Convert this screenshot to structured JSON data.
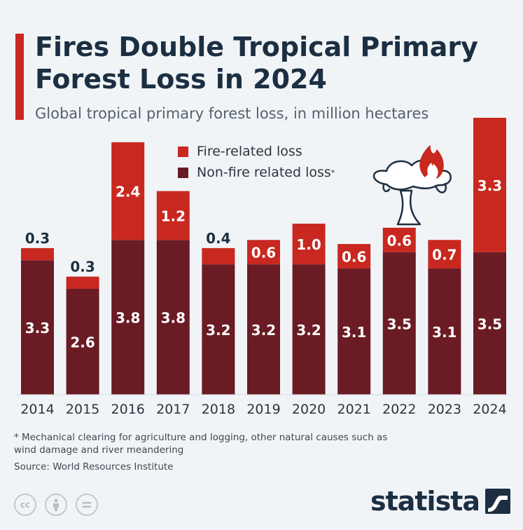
{
  "header": {
    "title": "Fires Double Tropical Primary Forest Loss in 2024",
    "subtitle": "Global tropical primary forest loss, in million hectares"
  },
  "footer": {
    "footnote": "* Mechanical clearing for agriculture and logging, other natural causes such as wind damage and river meandering",
    "source": "Source: World Resources Institute",
    "brand": "statista",
    "license_icons": [
      "cc-icon",
      "attribution-icon",
      "no-derivatives-icon"
    ]
  },
  "colors": {
    "fire": "#c8281f",
    "nonfire": "#6a1b24",
    "accent": "#c8281f",
    "text_dark": "#1c2f42"
  },
  "chart_data": {
    "type": "bar",
    "stacked": true,
    "categories": [
      "2014",
      "2015",
      "2016",
      "2017",
      "2018",
      "2019",
      "2020",
      "2021",
      "2022",
      "2023",
      "2024"
    ],
    "series": [
      {
        "name": "Non-fire related loss",
        "legend_suffix": "*",
        "color": "#6a1b24",
        "values": [
          3.3,
          2.6,
          3.8,
          3.8,
          3.2,
          3.2,
          3.2,
          3.1,
          3.5,
          3.1,
          3.5
        ]
      },
      {
        "name": "Fire-related loss",
        "color": "#c8281f",
        "values": [
          0.3,
          0.3,
          2.4,
          1.2,
          0.4,
          0.6,
          1.0,
          0.6,
          0.6,
          0.7,
          3.3
        ]
      }
    ],
    "ylim": [
      0,
      6.8
    ],
    "grid": false,
    "legend_position": "top-center"
  }
}
